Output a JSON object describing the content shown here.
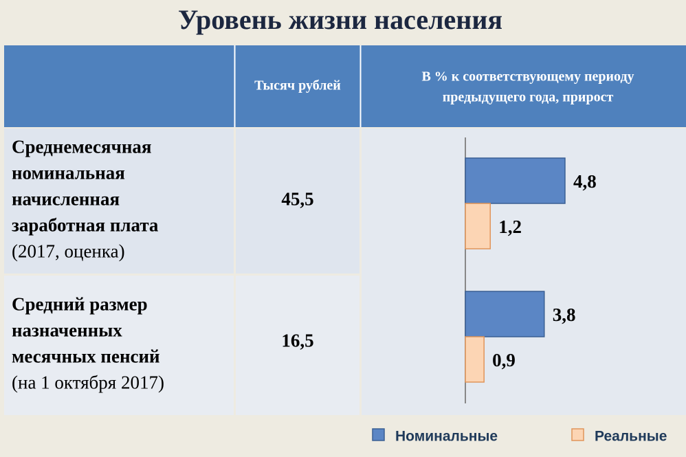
{
  "title": "Уровень жизни населения",
  "table": {
    "headers": [
      "Тысяч рублей",
      [
        "В % к соответствующему периоду",
        "предыдущего года, прирост"
      ]
    ],
    "rows": [
      {
        "label": [
          "Среднемесячная",
          "номинальная",
          "начисленная",
          "заработная плата"
        ],
        "note": "(2017, оценка)",
        "value": "45,5"
      },
      {
        "label": [
          "Средний размер",
          "назначенных",
          "месячных пенсий"
        ],
        "note": "(на 1 октября 2017)",
        "value": "16,5"
      }
    ]
  },
  "chart_data": {
    "type": "bar",
    "orientation": "horizontal",
    "categories": [
      null,
      null
    ],
    "xlim": [
      0,
      10
    ],
    "series": [
      {
        "name": "Номинальные",
        "color": "#5b86c5",
        "values": [
          4.8,
          3.8
        ],
        "value_labels": [
          "4,8",
          "3,8"
        ]
      },
      {
        "name": "Реальные",
        "color": "#fcd5b4",
        "values": [
          1.2,
          0.9
        ],
        "value_labels": [
          "1,2",
          "0,9"
        ]
      }
    ]
  }
}
